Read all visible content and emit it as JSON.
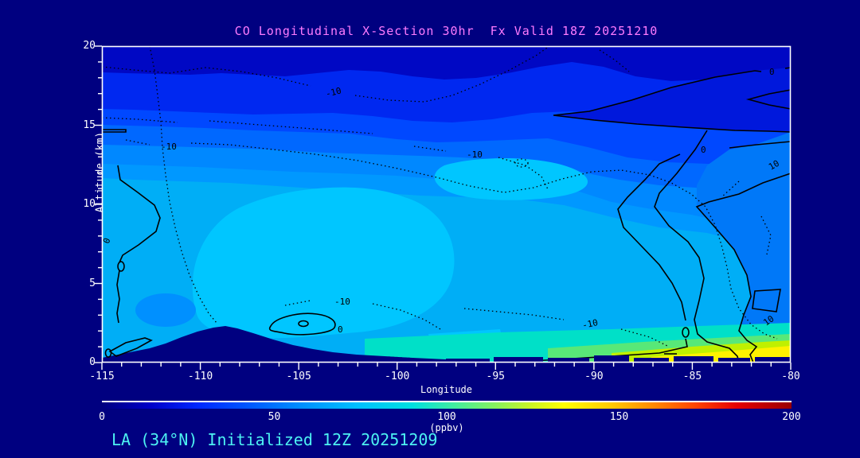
{
  "title": "CO Longitudinal X-Section 30hr  Fx Valid 18Z 20251210",
  "footer": "LA (34°N) Initialized 12Z 20251209",
  "colors": {
    "page_background": "#000080",
    "title_text": "#ff7bff",
    "footer_text": "#4df2f2",
    "axis_text": "#ffffff",
    "contour_lines": "#000000",
    "terrain_fill": "#000080"
  },
  "chart_data": {
    "type": "heatmap",
    "subtype": "filled-contour-cross-section",
    "title": "CO Longitudinal X-Section 30hr  Fx Valid 18Z 20251210",
    "xlabel": "Longitude",
    "ylabel": "Altitude (km)",
    "xlim": [
      -115,
      -80
    ],
    "ylim": [
      0,
      20
    ],
    "grid": false,
    "x_axis": {
      "tick_labels": [
        "-115",
        "-110",
        "-105",
        "-100",
        "-95",
        "-90",
        "-85",
        "-80"
      ],
      "minor_tick_step": 1
    },
    "y_axis": {
      "tick_labels": [
        "0",
        "5",
        "10",
        "15",
        "20"
      ],
      "minor_tick_step": 1
    },
    "colorbar": {
      "min": 0,
      "max": 200,
      "tick_labels": [
        "0",
        "50",
        "100",
        "150",
        "200"
      ],
      "units": "(ppbv)",
      "orientation": "horizontal",
      "gradient": [
        "#000080",
        "#0028ff",
        "#0090ff",
        "#00e0e0",
        "#86f25e",
        "#ffff00",
        "#ff8800",
        "#e60000",
        "#990000"
      ]
    },
    "contour_label_set": {
      "minus_ten": "-10",
      "zero": "0",
      "ten": "10"
    },
    "contour_levels": {
      "dotted": [
        -10
      ],
      "solid": [
        0,
        10
      ]
    },
    "terrain_note": "black/navy terrain silhouette: mountains peak ~2.3 km near lon -108.5, low blocky mesas from lon -103 to -80",
    "field_estimate_ppbv": {
      "note": "CO values estimated from fill colors via colorbar",
      "longitudes": [
        -115,
        -110,
        -105,
        -100,
        -95,
        -90,
        -85,
        -80
      ],
      "altitudes_km": [
        0,
        2,
        5,
        8,
        11,
        14,
        17,
        20
      ],
      "rows_by_altitude": {
        "20": [
          25,
          25,
          25,
          25,
          22,
          22,
          22,
          22
        ],
        "17": [
          35,
          35,
          33,
          32,
          30,
          28,
          25,
          25
        ],
        "14": [
          48,
          50,
          50,
          50,
          50,
          52,
          45,
          40
        ],
        "11": [
          68,
          70,
          72,
          75,
          72,
          70,
          60,
          55
        ],
        "8": [
          72,
          75,
          75,
          78,
          75,
          72,
          65,
          60
        ],
        "5": [
          75,
          78,
          80,
          80,
          78,
          75,
          70,
          68
        ],
        "2": [
          78,
          null,
          80,
          85,
          88,
          90,
          100,
          95
        ],
        "0": [
          82,
          null,
          null,
          95,
          100,
          110,
          140,
          135
        ]
      }
    }
  }
}
